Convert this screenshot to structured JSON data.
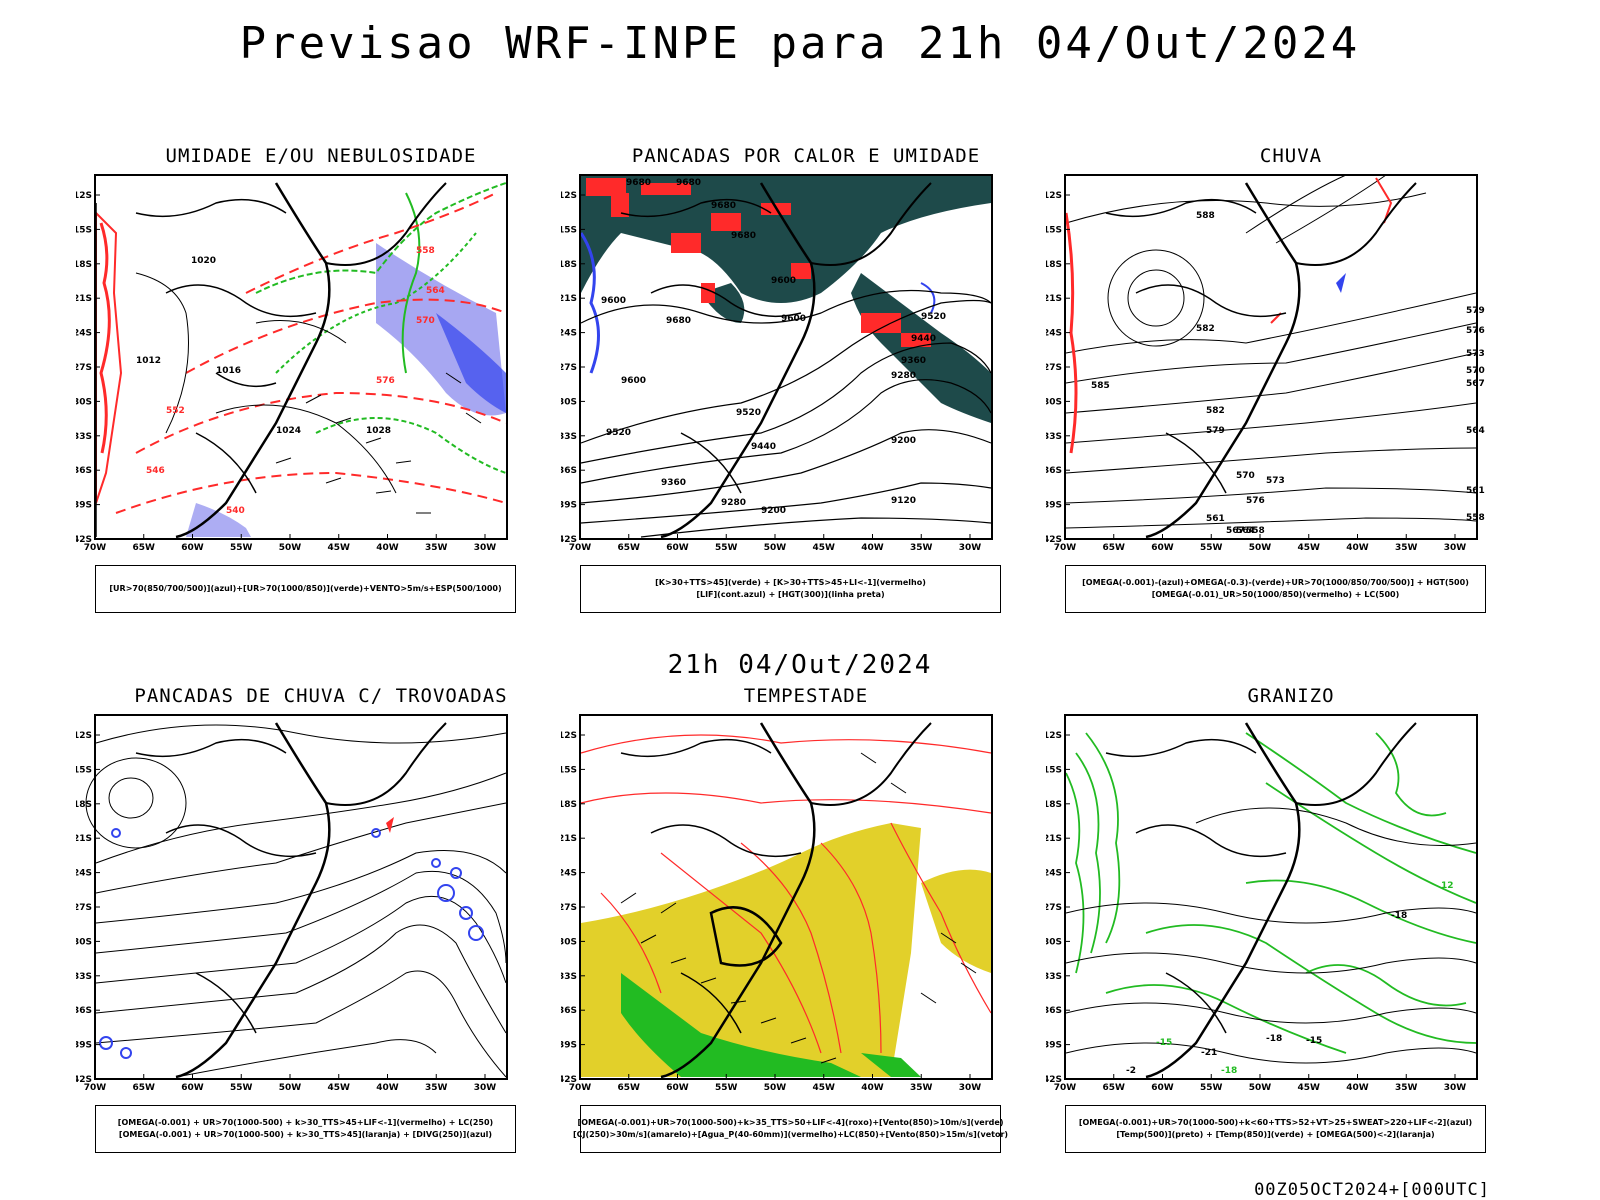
{
  "title": "Previsao WRF-INPE  para 21h 04/Out/2024",
  "subtitle": "21h 04/Out/2024",
  "footer": "00Z05OCT2024+[000UTC]",
  "axes": {
    "lat_labels": [
      "12S",
      "15S",
      "18S",
      "21S",
      "24S",
      "27S",
      "30S",
      "33S",
      "36S",
      "39S",
      "42S"
    ],
    "lon_labels": [
      "70W",
      "65W",
      "60W",
      "55W",
      "50W",
      "45W",
      "40W",
      "35W",
      "30W"
    ]
  },
  "colors": {
    "green": "#22bb22",
    "red": "#ff2a2a",
    "blue": "#3344ee",
    "lightblue": "#8a8aee",
    "teal": "#1e4a4a",
    "yellow": "#e2d02a",
    "black": "#000000"
  },
  "panels": [
    {
      "title": "UMIDADE E/OU NEBULOSIDADE",
      "legend": [
        "[UR>70(850/700/500)](azul)+[UR>70(1000/850)](verde)+VENTO>5m/s+ESP(500/1000)"
      ],
      "contour_labels": [
        "1020",
        "1016",
        "1012",
        "1024",
        "1028",
        "576",
        "570",
        "564",
        "558",
        "552",
        "546",
        "540"
      ]
    },
    {
      "title": "PANCADAS POR CALOR E UMIDADE",
      "legend": [
        "[K>30+TTS>45](verde) + [K>30+TTS>45+LI<-1](vermelho)",
        "[LIF](cont.azul) + [HGT(300)](linha preta)"
      ],
      "contour_labels": [
        "9680",
        "9680",
        "9680",
        "9680",
        "9600",
        "9600",
        "9680",
        "9600",
        "9520",
        "9520",
        "9440",
        "9360",
        "9280",
        "9200",
        "9120",
        "9360",
        "9280",
        "9200",
        "9520",
        "9440",
        "9600"
      ]
    },
    {
      "title": "CHUVA",
      "legend": [
        "[OMEGA(-0.001)-(azul)+OMEGA(-0.3)-(verde)+UR>70(1000/850/700/500)] + HGT(500)",
        "[OMEGA(-0.01)_UR>50(1000/850)(vermelho) + LC(500)"
      ],
      "contour_labels": [
        "588",
        "582",
        "579",
        "576",
        "573",
        "570",
        "567",
        "564",
        "561",
        "558",
        "585",
        "582",
        "579",
        "576",
        "573",
        "570",
        "567",
        "564",
        "561",
        "558"
      ]
    },
    {
      "title": "PANCADAS DE CHUVA C/ TROVOADAS",
      "legend": [
        "[OMEGA(-0.001) + UR>70(1000-500) + k>30_TTS>45+LIF<-1](vermelho) + LC(250)",
        "[OMEGA(-0.001) + UR>70(1000-500) + k>30_TTS>45](laranja) + [DIVG(250)](azul)"
      ],
      "contour_labels": []
    },
    {
      "title": "TEMPESTADE",
      "legend": [
        "[OMEGA(-0.001)+UR>70(1000-500)+k>35_TTS>50+LIF<-4](roxo)+[Vento(850)>10m/s](verde)",
        "[CJ(250)>30m/s](amarelo)+[Agua_P(40-60mm)](vermelho)+LC(850)+[Vento(850)>15m/s](vetor)"
      ],
      "contour_labels": []
    },
    {
      "title": "GRANIZO",
      "legend": [
        "[OMEGA(-0.001)+UR>70(1000-500)+k<60+TTS>52+VT>25+SWEAT>220+LIF<-2](azul)",
        "[Temp(500)](preto) + [Temp(850)](verde) + [OMEGA(500)<-2](laranja)"
      ],
      "contour_labels": [
        "12",
        "-18",
        "-15",
        "-18",
        "-21",
        "-18",
        "-15",
        "-2"
      ]
    }
  ]
}
